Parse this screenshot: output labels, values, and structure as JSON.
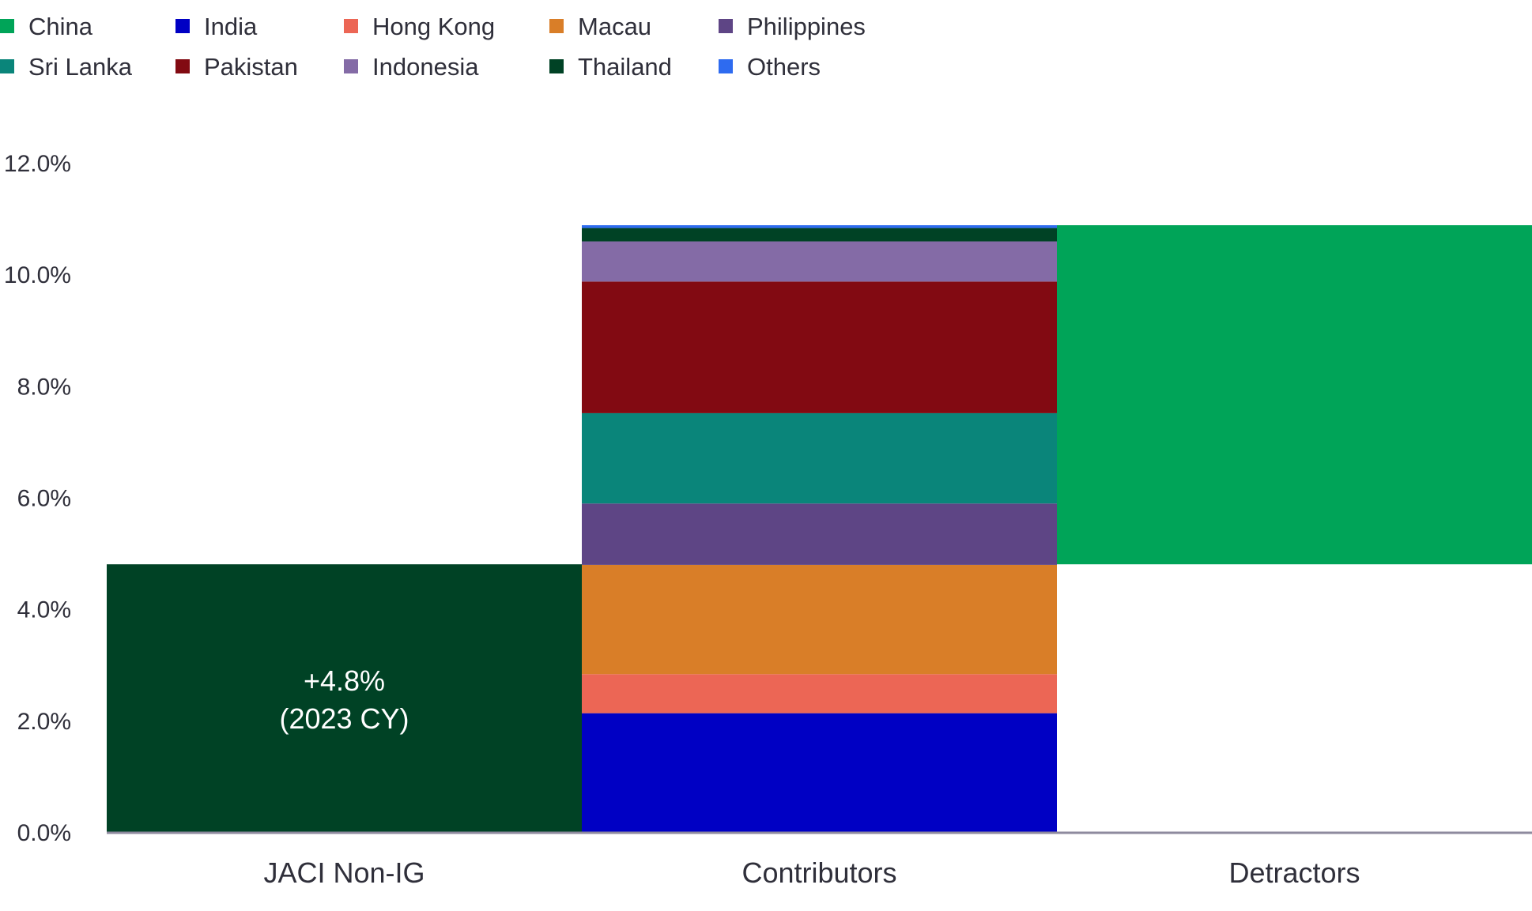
{
  "chart_data": {
    "type": "waterfall-stacked-bar",
    "title": "",
    "xlabel": "",
    "ylabel": "",
    "ylim": [
      0,
      12
    ],
    "yticks": [
      "0.0%",
      "2.0%",
      "4.0%",
      "6.0%",
      "8.0%",
      "10.0%",
      "12.0%"
    ],
    "ytick_values": [
      0,
      2,
      4,
      6,
      8,
      10,
      12
    ],
    "grid": false,
    "legend_position": "top-left",
    "categories": [
      "JACI Non-IG",
      "Contributors",
      "Detractors"
    ],
    "legend": [
      {
        "name": "China",
        "color": "#00A458"
      },
      {
        "name": "India",
        "color": "#0000C4"
      },
      {
        "name": "Hong Kong",
        "color": "#EC6655"
      },
      {
        "name": "Macau",
        "color": "#D97E28"
      },
      {
        "name": "Philippines",
        "color": "#5E4585"
      },
      {
        "name": "Sri Lanka",
        "color": "#0A857A"
      },
      {
        "name": "Pakistan",
        "color": "#820A12"
      },
      {
        "name": "Indonesia",
        "color": "#846BA6"
      },
      {
        "name": "Thailand",
        "color": "#004225"
      },
      {
        "name": "Others",
        "color": "#2E6BF0"
      }
    ],
    "total_bar": {
      "category": "JACI Non-IG",
      "value": 4.8,
      "color": "#004225",
      "label_line1": "+4.8%",
      "label_line2": "(2023 CY)"
    },
    "contributors": [
      {
        "name": "India",
        "value": 2.13
      },
      {
        "name": "Hong Kong",
        "value": 0.7
      },
      {
        "name": "Macau",
        "value": 1.96
      },
      {
        "name": "Philippines",
        "value": 1.1
      },
      {
        "name": "Sri Lanka",
        "value": 1.62
      },
      {
        "name": "Pakistan",
        "value": 2.36
      },
      {
        "name": "Indonesia",
        "value": 0.72
      },
      {
        "name": "Thailand",
        "value": 0.24
      },
      {
        "name": "Others",
        "value": 0.05
      }
    ],
    "detractors": [
      {
        "name": "China",
        "value": -6.08
      }
    ],
    "axis_color": "#8E8A9E"
  }
}
